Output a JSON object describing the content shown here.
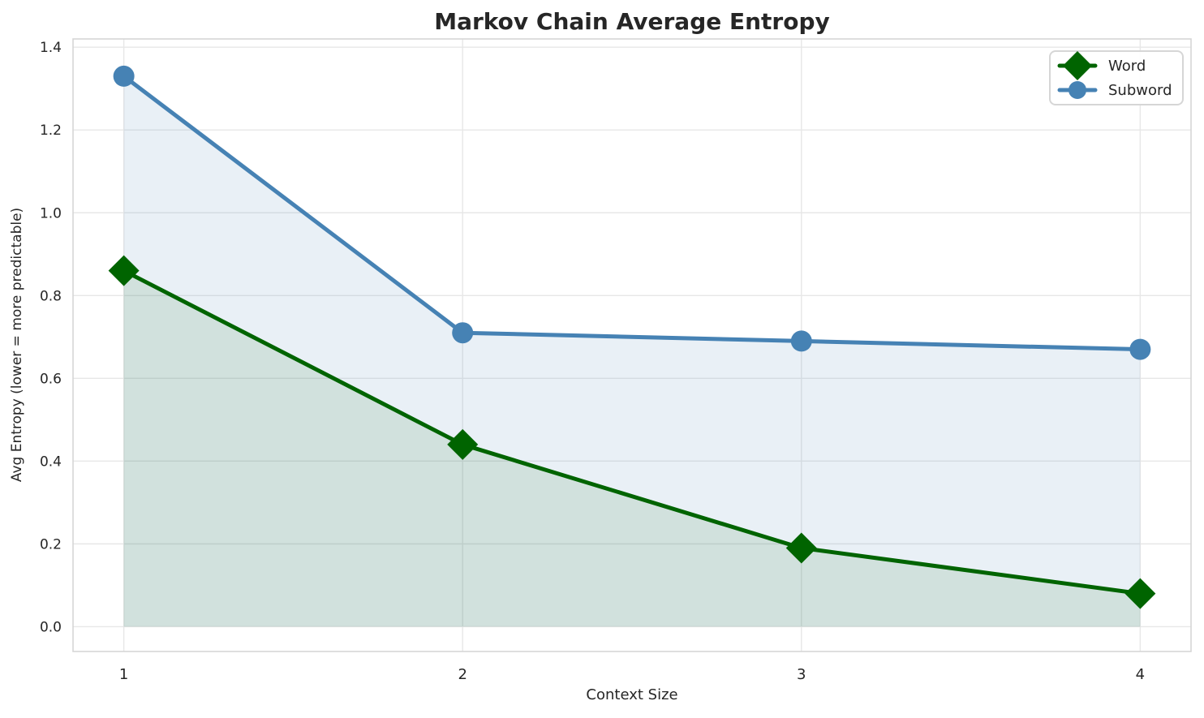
{
  "chart_data": {
    "type": "line",
    "title": "Markov Chain Average Entropy",
    "xlabel": "Context Size",
    "ylabel": "Avg Entropy (lower = more predictable)",
    "x": [
      1,
      2,
      3,
      4
    ],
    "series": [
      {
        "name": "Word",
        "values": [
          0.86,
          0.44,
          0.19,
          0.08
        ],
        "color": "#006400",
        "marker": "diamond",
        "fill_color": "rgba(0,100,0,0.10)"
      },
      {
        "name": "Subword",
        "values": [
          1.33,
          0.71,
          0.69,
          0.67
        ],
        "color": "#4682B4",
        "marker": "circle",
        "fill_color": "rgba(70,130,180,0.12)"
      }
    ],
    "fill_to": 0,
    "xlim": [
      0.85,
      4.15
    ],
    "ylim": [
      -0.06,
      1.42
    ],
    "xticks": {
      "values": [
        1,
        2,
        3,
        4
      ],
      "labels": [
        "1",
        "2",
        "3",
        "4"
      ]
    },
    "yticks": {
      "values": [
        0.0,
        0.2,
        0.4,
        0.6,
        0.8,
        1.0,
        1.2,
        1.4
      ],
      "labels": [
        "0.0",
        "0.2",
        "0.4",
        "0.6",
        "0.8",
        "1.0",
        "1.2",
        "1.4"
      ]
    },
    "grid": true,
    "legend_position": "upper right",
    "colors": {
      "background": "#FFFFFF",
      "grid": "#E7E7E7",
      "spine": "#D4D4D4",
      "text": "#262626",
      "word_line": "#006400",
      "subword_line": "#4682B4"
    }
  }
}
